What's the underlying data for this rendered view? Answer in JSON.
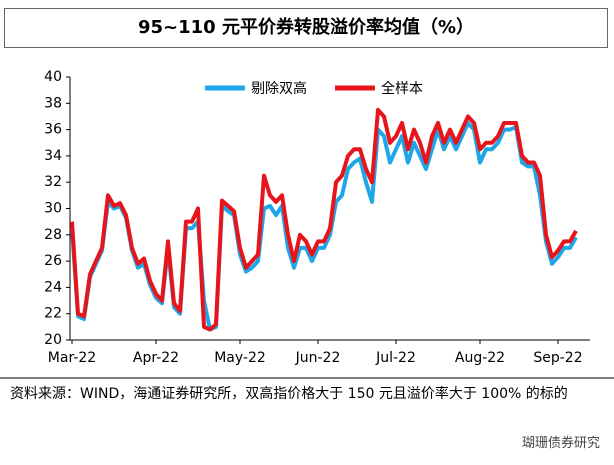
{
  "chart_data": {
    "type": "line",
    "title": "95~110 元平价券转股溢价率均值（%）",
    "source": "资料来源：WIND，海通证券研究所，双高指价格大于 150 元且溢价率大于 100% 的标的",
    "watermark": "瑚珊债券研究",
    "categories": [
      "Mar-22",
      null,
      null,
      null,
      null,
      null,
      null,
      null,
      null,
      null,
      null,
      null,
      null,
      null,
      "Apr-22",
      null,
      null,
      null,
      null,
      null,
      null,
      null,
      null,
      null,
      null,
      null,
      null,
      null,
      "May-22",
      null,
      null,
      null,
      null,
      null,
      null,
      null,
      null,
      null,
      null,
      null,
      null,
      "Jun-22",
      null,
      null,
      null,
      null,
      null,
      null,
      null,
      null,
      null,
      null,
      null,
      null,
      "Jul-22",
      null,
      null,
      null,
      null,
      null,
      null,
      null,
      null,
      null,
      null,
      null,
      null,
      null,
      "Aug-22",
      null,
      null,
      null,
      null,
      null,
      null,
      null,
      null,
      null,
      null,
      null,
      null,
      "Sep-22",
      null,
      null,
      null
    ],
    "series": [
      {
        "name": "剔除双高",
        "color": "#1ea6e8",
        "values": [
          28.5,
          21.8,
          21.6,
          24.8,
          25.8,
          26.8,
          30.5,
          30,
          30.2,
          29.3,
          26.8,
          25.5,
          25.8,
          24.2,
          23.2,
          22.8,
          27,
          22.5,
          22,
          28.5,
          28.5,
          29,
          23,
          20.8,
          21,
          30.2,
          29.8,
          29.5,
          26.5,
          25.2,
          25.5,
          26,
          30,
          30.2,
          29.5,
          30.2,
          27,
          25.5,
          27,
          27,
          26,
          27,
          27,
          28,
          30.5,
          31,
          33,
          33.5,
          33.8,
          32,
          30.5,
          36,
          35.5,
          33.5,
          34.5,
          35.5,
          33.5,
          35,
          34,
          33,
          34.5,
          36,
          34.5,
          35.5,
          34.5,
          35.5,
          36.5,
          36,
          33.5,
          34.5,
          34.5,
          35,
          36,
          36,
          36.2,
          33.5,
          33.2,
          33.2,
          31,
          27.5,
          25.8,
          26.3,
          27,
          27,
          27.8
        ]
      },
      {
        "name": "全样本",
        "color": "#e8141c",
        "values": [
          29,
          22,
          21.8,
          25,
          26,
          27,
          31,
          30.2,
          30.4,
          29.5,
          27,
          25.8,
          26.2,
          24.5,
          23.5,
          23,
          27.5,
          22.8,
          22.2,
          29,
          29,
          30,
          21,
          20.8,
          21.2,
          30.6,
          30.2,
          29.8,
          27,
          25.5,
          26,
          26.5,
          32.5,
          31,
          30.5,
          31,
          28,
          26,
          28,
          27.5,
          26.5,
          27.5,
          27.5,
          28.5,
          32,
          32.5,
          34,
          34.5,
          34.5,
          33,
          32,
          37.5,
          37,
          35,
          35.5,
          36.5,
          34.5,
          36,
          35,
          33.5,
          35.5,
          36.5,
          35,
          36,
          35,
          36,
          37,
          36.5,
          34.5,
          35,
          35,
          35.5,
          36.5,
          36.5,
          36.5,
          34,
          33.5,
          33.5,
          32.5,
          28,
          26.3,
          26.8,
          27.5,
          27.5,
          28.3
        ]
      }
    ],
    "ylim": [
      20,
      40
    ],
    "yticks": [
      20,
      22,
      24,
      26,
      28,
      30,
      32,
      34,
      36,
      38,
      40
    ],
    "legend": "top"
  }
}
